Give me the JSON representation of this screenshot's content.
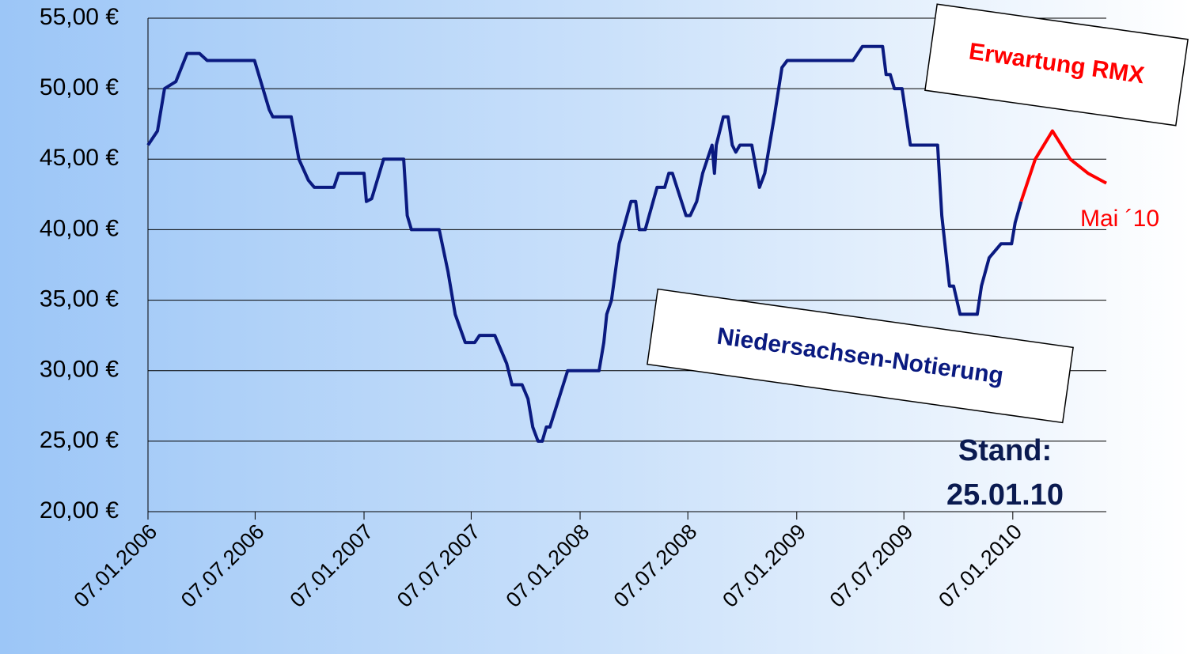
{
  "chart_data": {
    "type": "line",
    "xlim": [
      "07.01.2006",
      "14.06.2010"
    ],
    "xticks": [
      "07.01.2006",
      "07.07.2006",
      "07.01.2007",
      "07.07.2007",
      "07.01.2008",
      "07.07.2008",
      "07.01.2009",
      "07.07.2009",
      "07.01.2010"
    ],
    "ylim": [
      20,
      55
    ],
    "yticks": [
      {
        "value": 20,
        "label": "20,00 €"
      },
      {
        "value": 25,
        "label": "25,00 €"
      },
      {
        "value": 30,
        "label": "30,00 €"
      },
      {
        "value": 35,
        "label": "35,00 €"
      },
      {
        "value": 40,
        "label": "40,00 €"
      },
      {
        "value": 45,
        "label": "45,00 €"
      },
      {
        "value": 50,
        "label": "50,00 €"
      },
      {
        "value": 55,
        "label": "55,00 €"
      }
    ],
    "grid": true,
    "series": [
      {
        "name": "Niedersachsen-Notierung",
        "color": "#0a1a80",
        "x": [
          "07.01.2006",
          "23.01.2006",
          "04.02.2006",
          "23.02.2006",
          "14.03.2006",
          "04.04.2006",
          "17.04.2006",
          "06.07.2006",
          "31.07.2006",
          "06.08.2006",
          "06.09.2006",
          "19.09.2006",
          "05.10.2006",
          "15.10.2006",
          "17.11.2006",
          "25.11.2006",
          "07.01.2007",
          "11.01.2007",
          "20.01.2007",
          "09.02.2007",
          "15.03.2007",
          "21.03.2007",
          "28.03.2007",
          "14.05.2007",
          "29.05.2007",
          "10.06.2007",
          "27.06.2007",
          "13.07.2007",
          "21.07.2007",
          "16.08.2007",
          "05.09.2007",
          "14.09.2007",
          "01.10.2007",
          "11.10.2007",
          "19.10.2007",
          "28.10.2007",
          "04.11.2007",
          "11.11.2007",
          "17.11.2007",
          "17.12.2007",
          "08.02.2008",
          "16.02.2008",
          "21.02.2008",
          "29.02.2008",
          "13.03.2008",
          "02.04.2008",
          "10.04.2008",
          "16.04.2008",
          "26.04.2008",
          "16.05.2008",
          "29.05.2008",
          "05.06.2008",
          "11.06.2008",
          "04.07.2008",
          "11.07.2008",
          "22.07.2008",
          "01.08.2008",
          "17.08.2008",
          "21.08.2008",
          "24.08.2008",
          "05.09.2008",
          "13.09.2008",
          "20.09.2008",
          "26.09.2008",
          "03.10.2008",
          "23.10.2008",
          "05.11.2008",
          "14.11.2008",
          "30.11.2008",
          "13.12.2008",
          "22.12.2008",
          "12.04.2009",
          "28.04.2009",
          "01.06.2009",
          "07.06.2009",
          "14.06.2009",
          "21.06.2009",
          "04.07.2009",
          "18.07.2009",
          "02.09.2009",
          "09.09.2009",
          "22.09.2009",
          "29.09.2009",
          "10.10.2009",
          "08.11.2009",
          "15.11.2009",
          "28.11.2009",
          "18.12.2009",
          "05.01.2010",
          "11.01.2010",
          "21.01.2010"
        ],
        "values": [
          46,
          47,
          50,
          50.5,
          52.5,
          52.5,
          52,
          52,
          48.5,
          48,
          48,
          45,
          43.5,
          43,
          43,
          44,
          44,
          42,
          42.2,
          45,
          45,
          41,
          40,
          40,
          37,
          34,
          32,
          32,
          32.5,
          32.5,
          30.5,
          29,
          29,
          28,
          26,
          25,
          25,
          26,
          26,
          30,
          30,
          32,
          34,
          35,
          39,
          42,
          42,
          40,
          40,
          43,
          43,
          44,
          44,
          41,
          41,
          42,
          44,
          46,
          44,
          46,
          48,
          48,
          46,
          45.5,
          46,
          46,
          43,
          44,
          48,
          51.5,
          52,
          52,
          53,
          53,
          51,
          51,
          50,
          50,
          46,
          46,
          41,
          36,
          36,
          34,
          34,
          36,
          38,
          39,
          39,
          40.5,
          42
        ]
      },
      {
        "name": "Erwartung RMX",
        "color": "#ff0000",
        "x": [
          "21.01.2010",
          "14.02.2010",
          "15.03.2010",
          "14.04.2010",
          "14.05.2010",
          "14.06.2010"
        ],
        "values": [
          42,
          45,
          47,
          45,
          44,
          43.3
        ]
      }
    ],
    "annotations": [
      "Erwartung RMX",
      "Niedersachsen-Notierung",
      "Mai ´10",
      "Stand:",
      "25.01.10"
    ]
  }
}
